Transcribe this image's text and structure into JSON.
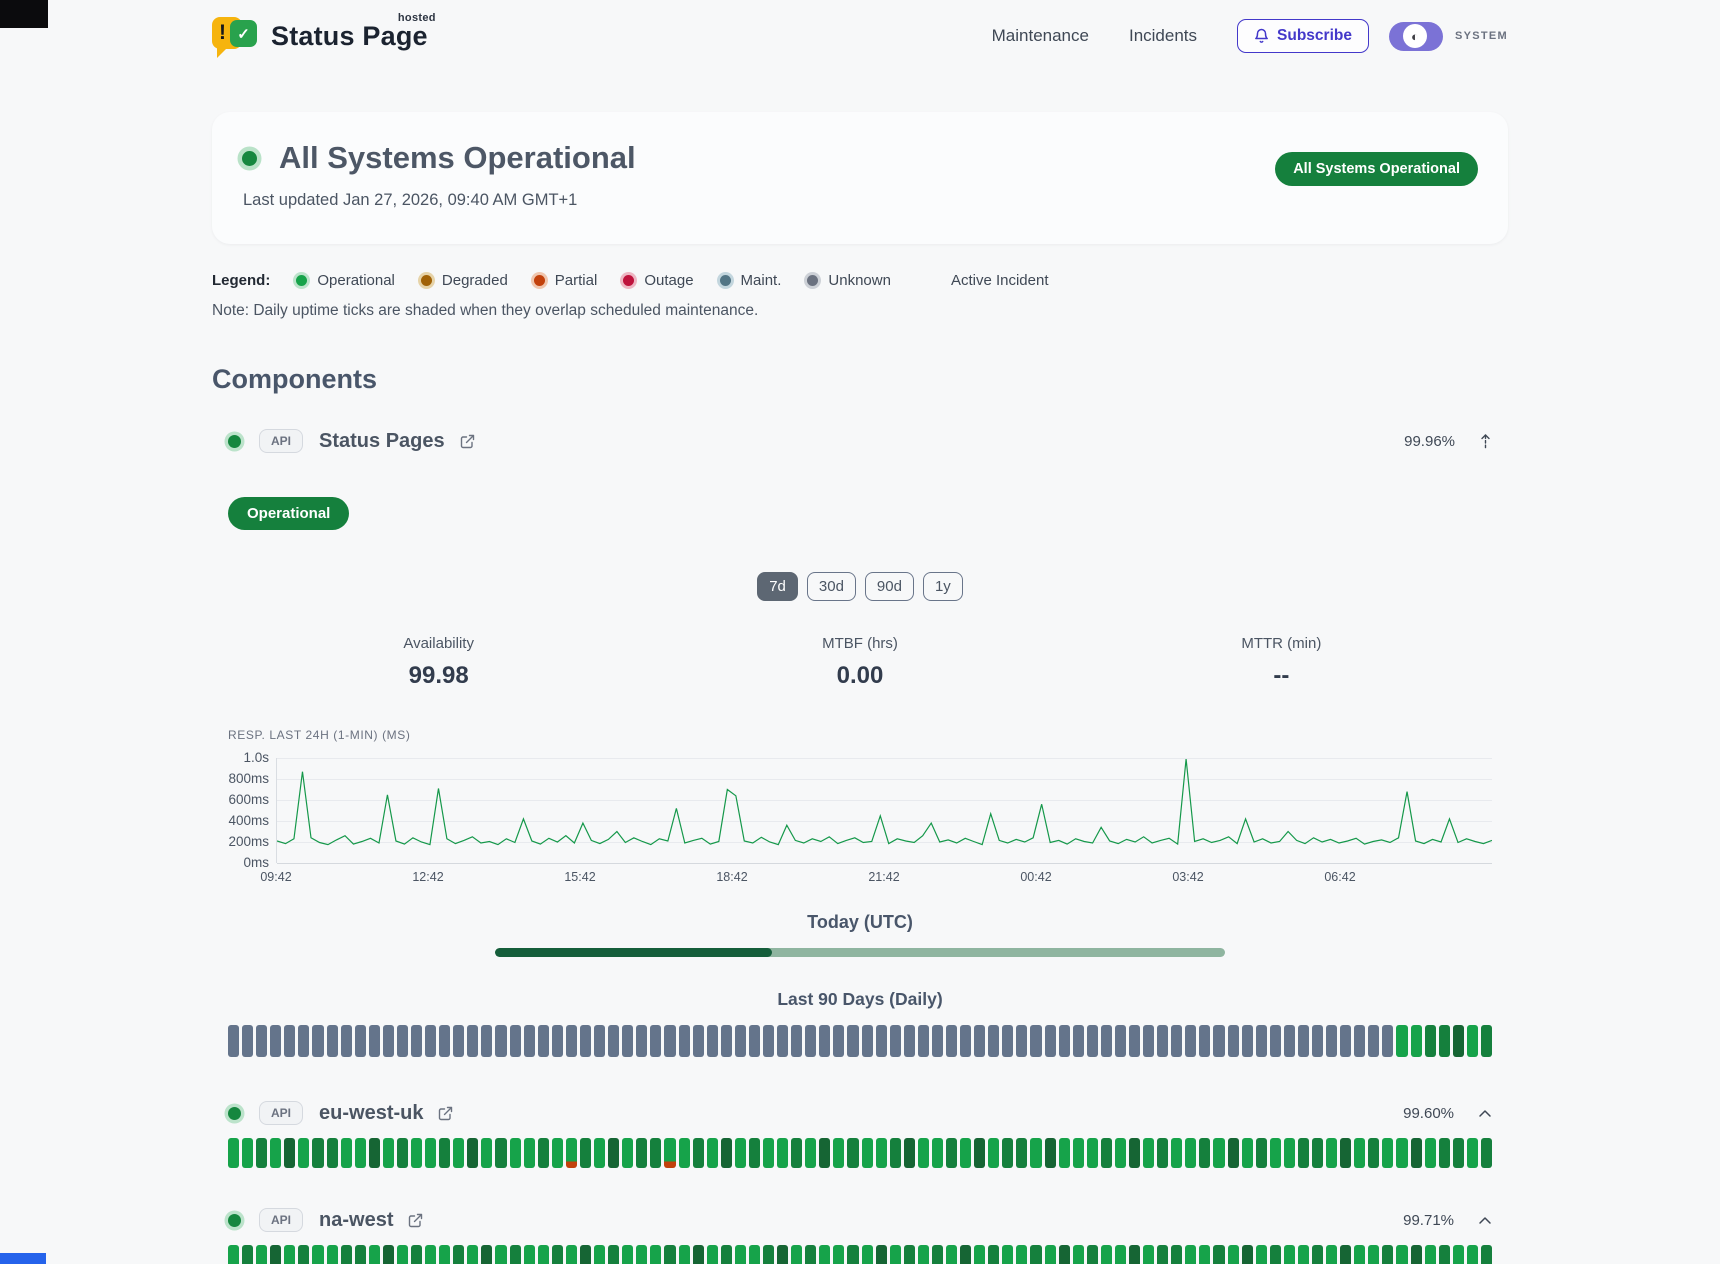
{
  "header": {
    "brand_name": "Status Page",
    "brand_tag": "hosted",
    "nav": [
      {
        "label": "Maintenance"
      },
      {
        "label": "Incidents"
      }
    ],
    "subscribe_label": "Subscribe",
    "system_label": "SYSTEM",
    "accent_color": "#4338ca",
    "toggle_color": "#7b72d6"
  },
  "hero": {
    "title": "All Systems Operational",
    "last_updated": "Last updated Jan 27, 2026, 09:40 AM GMT+1",
    "badge": "All Systems Operational",
    "badge_color": "#15803d"
  },
  "legend": {
    "label": "Legend:",
    "items": [
      {
        "label": "Operational",
        "color": "#16a34a",
        "ring": "#bce3cb"
      },
      {
        "label": "Degraded",
        "color": "#a16207",
        "ring": "#e6d3a8"
      },
      {
        "label": "Partial",
        "color": "#c2410c",
        "ring": "#f0c6ae"
      },
      {
        "label": "Outage",
        "color": "#be123c",
        "ring": "#eeb6c3"
      },
      {
        "label": "Maint.",
        "color": "#527585",
        "ring": "#c3d6de"
      },
      {
        "label": "Unknown",
        "color": "#6b7280",
        "ring": "#cdd1d7"
      }
    ],
    "active_incident_label": "Active Incident",
    "note": "Note: Daily uptime ticks are shaded when they overlap scheduled maintenance."
  },
  "components": {
    "title": "Components",
    "items": [
      {
        "name": "Status Pages",
        "type_badge": "API",
        "uptime": "99.96%",
        "status_label": "Operational",
        "ranges": [
          "7d",
          "30d",
          "90d",
          "1y"
        ],
        "selected_range": "7d",
        "stats": [
          {
            "label": "Availability",
            "value": "99.98"
          },
          {
            "label": "MTBF (hrs)",
            "value": "0.00"
          },
          {
            "label": "MTTR (min)",
            "value": "--"
          }
        ],
        "today_label": "Today (UTC)",
        "today_progress_pct": 38,
        "history_label": "Last 90 Days (Daily)",
        "ticks": "GGGGGGGGGGGGGGGGGGGGGGGGGGGGGGGGGGGGGGGGGGGGGGGGGGGGGGGGGGGGGGGGGGGGGGGGGGGGGGGGGGGaabbcab"
      },
      {
        "name": "eu-west-uk",
        "type_badge": "API",
        "uptime": "99.60%",
        "ticks": "aabacabbaacabaabacabaabapbacabbpabacabaabacabaabcaabacabbacaaabacabaabacabaabbacabaacabbab"
      },
      {
        "name": "na-west",
        "type_badge": "API",
        "uptime": "99.71%",
        "ticks": "abacabaabbacabaabacabaabacabpaabacabaabcabaabacababacabaabacabaacabbaabacabaabacaabacabaab"
      }
    ]
  },
  "chart_data": {
    "type": "line",
    "title": "RESP. LAST 24H (1-MIN) (MS)",
    "xlabel": "",
    "ylabel": "response time",
    "unit": "ms",
    "ylim": [
      0,
      1000
    ],
    "grid": true,
    "legend_position": "none",
    "x_ticks": [
      "09:42",
      "12:42",
      "15:42",
      "18:42",
      "21:42",
      "00:42",
      "03:42",
      "06:42"
    ],
    "y_ticks": [
      "1.0s",
      "800ms",
      "600ms",
      "400ms",
      "200ms",
      "0ms"
    ],
    "series": [
      {
        "name": "Response time (1-min)",
        "color": "#15984a",
        "values": [
          210,
          185,
          230,
          870,
          240,
          195,
          175,
          220,
          260,
          180,
          205,
          235,
          190,
          650,
          210,
          180,
          240,
          200,
          175,
          710,
          230,
          185,
          215,
          250,
          190,
          205,
          175,
          230,
          195,
          420,
          210,
          180,
          235,
          200,
          260,
          190,
          380,
          215,
          185,
          225,
          300,
          195,
          240,
          205,
          175,
          230,
          210,
          520,
          190,
          215,
          235,
          180,
          205,
          700,
          640,
          210,
          190,
          245,
          200,
          175,
          360,
          215,
          190,
          230,
          205,
          250,
          185,
          215,
          240,
          195,
          205,
          450,
          185,
          230,
          210,
          195,
          260,
          380,
          200,
          220,
          190,
          235,
          205,
          175,
          470,
          215,
          190,
          225,
          200,
          240,
          560,
          195,
          215,
          180,
          230,
          205,
          190,
          340,
          210,
          185,
          225,
          200,
          250,
          190,
          215,
          235,
          180,
          990,
          205,
          230,
          195,
          215,
          250,
          185,
          420,
          200,
          230,
          190,
          205,
          300,
          215,
          185,
          240,
          200,
          225,
          190,
          210,
          235,
          180,
          205,
          220,
          195,
          240,
          680,
          210,
          185,
          225,
          200,
          420,
          195,
          230,
          205,
          185,
          215
        ]
      }
    ]
  }
}
